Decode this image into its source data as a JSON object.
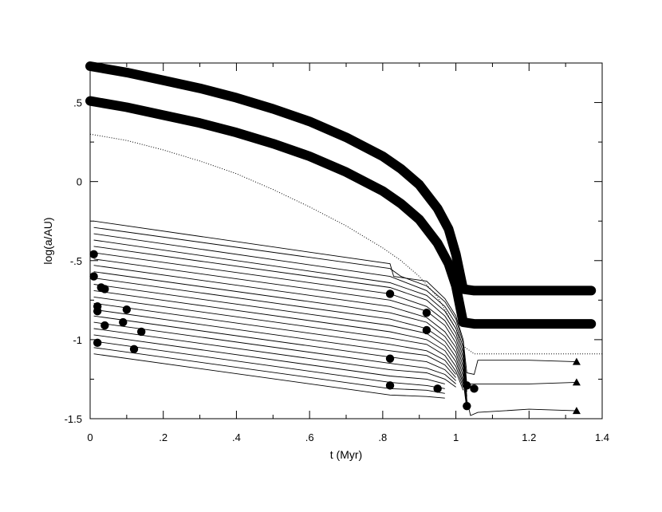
{
  "chart_data": {
    "type": "line",
    "xlabel": "t (Myr)",
    "ylabel": "log(a/AU)",
    "xlim": [
      0,
      1.4
    ],
    "ylim": [
      -1.5,
      0.75
    ],
    "x_ticks": [
      {
        "v": 0,
        "label": "0"
      },
      {
        "v": 0.2,
        "label": ".2"
      },
      {
        "v": 0.4,
        "label": ".4"
      },
      {
        "v": 0.6,
        "label": ".6"
      },
      {
        "v": 0.8,
        "label": ".8"
      },
      {
        "v": 1.0,
        "label": "1"
      },
      {
        "v": 1.2,
        "label": "1.2"
      },
      {
        "v": 1.4,
        "label": "1.4"
      }
    ],
    "y_ticks": [
      {
        "v": 0.5,
        "label": ".5"
      },
      {
        "v": 0,
        "label": "0"
      },
      {
        "v": -0.5,
        "label": "-.5"
      },
      {
        "v": -1.0,
        "label": "-1"
      },
      {
        "v": -1.5,
        "label": "-1.5"
      }
    ],
    "giant_planets": [
      {
        "points": [
          [
            0,
            0.73
          ],
          [
            0.1,
            0.69
          ],
          [
            0.2,
            0.64
          ],
          [
            0.3,
            0.59
          ],
          [
            0.4,
            0.53
          ],
          [
            0.5,
            0.46
          ],
          [
            0.6,
            0.38
          ],
          [
            0.7,
            0.28
          ],
          [
            0.8,
            0.16
          ],
          [
            0.85,
            0.08
          ],
          [
            0.9,
            -0.02
          ],
          [
            0.95,
            -0.17
          ],
          [
            0.98,
            -0.3
          ],
          [
            1.0,
            -0.46
          ],
          [
            1.02,
            -0.68
          ],
          [
            1.05,
            -0.69
          ],
          [
            1.2,
            -0.69
          ],
          [
            1.37,
            -0.69
          ]
        ]
      },
      {
        "points": [
          [
            0,
            0.51
          ],
          [
            0.1,
            0.47
          ],
          [
            0.2,
            0.42
          ],
          [
            0.3,
            0.37
          ],
          [
            0.4,
            0.31
          ],
          [
            0.5,
            0.24
          ],
          [
            0.6,
            0.16
          ],
          [
            0.7,
            0.06
          ],
          [
            0.8,
            -0.06
          ],
          [
            0.85,
            -0.14
          ],
          [
            0.9,
            -0.24
          ],
          [
            0.95,
            -0.39
          ],
          [
            0.98,
            -0.52
          ],
          [
            1.0,
            -0.66
          ],
          [
            1.02,
            -0.89
          ],
          [
            1.05,
            -0.9
          ],
          [
            1.2,
            -0.9
          ],
          [
            1.37,
            -0.9
          ]
        ]
      }
    ],
    "dotted_curve": {
      "points": [
        [
          0,
          0.3
        ],
        [
          0.1,
          0.26
        ],
        [
          0.2,
          0.2
        ],
        [
          0.3,
          0.13
        ],
        [
          0.4,
          0.05
        ],
        [
          0.5,
          -0.05
        ],
        [
          0.6,
          -0.16
        ],
        [
          0.7,
          -0.28
        ],
        [
          0.8,
          -0.42
        ],
        [
          0.85,
          -0.5
        ],
        [
          0.9,
          -0.6
        ],
        [
          0.95,
          -0.73
        ],
        [
          1.0,
          -0.93
        ],
        [
          1.02,
          -1.04
        ],
        [
          1.05,
          -1.09
        ],
        [
          1.2,
          -1.09
        ],
        [
          1.4,
          -1.09
        ]
      ]
    },
    "embryo_tracks": [
      {
        "points": [
          [
            0.01,
            -0.25
          ],
          [
            0.82,
            -0.52
          ],
          [
            0.83,
            -0.6
          ],
          [
            0.92,
            -0.63
          ],
          [
            0.97,
            -0.74
          ],
          [
            1.0,
            -0.85
          ],
          [
            1.02,
            -1.0
          ],
          [
            1.03,
            -1.21
          ],
          [
            1.05,
            -1.22
          ],
          [
            1.06,
            -1.13
          ],
          [
            1.2,
            -1.13
          ],
          [
            1.33,
            -1.14
          ]
        ]
      },
      {
        "points": [
          [
            0.01,
            -0.29
          ],
          [
            0.82,
            -0.55
          ],
          [
            0.85,
            -0.6
          ],
          [
            0.92,
            -0.66
          ],
          [
            0.97,
            -0.76
          ],
          [
            1.0,
            -0.87
          ],
          [
            1.02,
            -1.02
          ],
          [
            1.03,
            -1.28
          ],
          [
            1.2,
            -1.28
          ],
          [
            1.33,
            -1.27
          ]
        ]
      },
      {
        "points": [
          [
            0.01,
            -0.33
          ],
          [
            0.82,
            -0.6
          ],
          [
            0.92,
            -0.69
          ],
          [
            0.97,
            -0.79
          ],
          [
            1.0,
            -0.9
          ],
          [
            1.02,
            -1.05
          ],
          [
            1.03,
            -1.38
          ],
          [
            1.04,
            -1.48
          ],
          [
            1.06,
            -1.46
          ],
          [
            1.2,
            -1.44
          ],
          [
            1.33,
            -1.45
          ]
        ]
      },
      {
        "points": [
          [
            0.01,
            -0.37
          ],
          [
            0.82,
            -0.64
          ],
          [
            0.92,
            -0.72
          ],
          [
            0.97,
            -0.82
          ],
          [
            1.0,
            -0.93
          ],
          [
            1.02,
            -1.08
          ],
          [
            1.03,
            -1.3
          ]
        ]
      },
      {
        "points": [
          [
            0.01,
            -0.41
          ],
          [
            0.82,
            -0.67
          ],
          [
            0.92,
            -0.75
          ],
          [
            0.97,
            -0.85
          ],
          [
            1.0,
            -0.96
          ],
          [
            1.02,
            -1.11
          ],
          [
            1.03,
            -1.33
          ]
        ]
      },
      {
        "points": [
          [
            0.01,
            -0.45
          ],
          [
            0.82,
            -0.71
          ],
          [
            0.92,
            -0.79
          ],
          [
            0.97,
            -0.88
          ],
          [
            1.0,
            -0.99
          ],
          [
            1.02,
            -1.14
          ],
          [
            1.03,
            -1.36
          ]
        ]
      },
      {
        "points": [
          [
            0.01,
            -0.49
          ],
          [
            0.82,
            -0.75
          ],
          [
            0.92,
            -0.82
          ],
          [
            0.97,
            -0.91
          ],
          [
            1.0,
            -1.02
          ],
          [
            1.02,
            -1.17
          ],
          [
            1.03,
            -1.39
          ]
        ]
      },
      {
        "points": [
          [
            0.01,
            -0.53
          ],
          [
            0.82,
            -0.79
          ],
          [
            0.92,
            -0.86
          ],
          [
            0.97,
            -0.95
          ],
          [
            1.0,
            -1.05
          ],
          [
            1.02,
            -1.2
          ],
          [
            1.03,
            -1.42
          ]
        ]
      },
      {
        "points": [
          [
            0.01,
            -0.57
          ],
          [
            0.82,
            -0.83
          ],
          [
            0.92,
            -0.89
          ],
          [
            0.97,
            -0.98
          ],
          [
            1.0,
            -1.08
          ],
          [
            1.02,
            -1.23
          ],
          [
            1.03,
            -1.44
          ]
        ]
      },
      {
        "points": [
          [
            0.01,
            -0.61
          ],
          [
            0.82,
            -0.87
          ],
          [
            0.92,
            -0.93
          ],
          [
            0.97,
            -1.01
          ],
          [
            1.0,
            -1.11
          ],
          [
            1.02,
            -1.26
          ],
          [
            1.03,
            -1.44
          ]
        ]
      },
      {
        "points": [
          [
            0.01,
            -0.65
          ],
          [
            0.82,
            -0.91
          ],
          [
            0.92,
            -0.96
          ],
          [
            0.97,
            -1.04
          ],
          [
            1.0,
            -1.14
          ],
          [
            1.02,
            -1.28
          ]
        ]
      },
      {
        "points": [
          [
            0.01,
            -0.69
          ],
          [
            0.82,
            -0.95
          ],
          [
            0.92,
            -1.0
          ],
          [
            0.97,
            -1.07
          ],
          [
            1.0,
            -1.17
          ],
          [
            1.02,
            -1.3
          ]
        ]
      },
      {
        "points": [
          [
            0.01,
            -0.73
          ],
          [
            0.82,
            -0.99
          ],
          [
            0.92,
            -1.03
          ],
          [
            0.97,
            -1.1
          ],
          [
            1.0,
            -1.2
          ],
          [
            1.02,
            -1.32
          ]
        ]
      },
      {
        "points": [
          [
            0.01,
            -0.77
          ],
          [
            0.82,
            -1.03
          ],
          [
            0.92,
            -1.07
          ],
          [
            0.97,
            -1.13
          ],
          [
            1.0,
            -1.22
          ]
        ]
      },
      {
        "points": [
          [
            0.01,
            -0.81
          ],
          [
            0.82,
            -1.07
          ],
          [
            0.92,
            -1.1
          ],
          [
            0.97,
            -1.16
          ],
          [
            1.0,
            -1.24
          ]
        ]
      },
      {
        "points": [
          [
            0.01,
            -0.85
          ],
          [
            0.82,
            -1.11
          ],
          [
            0.92,
            -1.14
          ],
          [
            0.97,
            -1.19
          ],
          [
            1.0,
            -1.26
          ]
        ]
      },
      {
        "points": [
          [
            0.01,
            -0.89
          ],
          [
            0.82,
            -1.15
          ],
          [
            0.92,
            -1.18
          ],
          [
            0.97,
            -1.22
          ],
          [
            1.0,
            -1.28
          ]
        ]
      },
      {
        "points": [
          [
            0.01,
            -0.93
          ],
          [
            0.82,
            -1.19
          ],
          [
            0.92,
            -1.21
          ],
          [
            0.97,
            -1.25
          ],
          [
            1.0,
            -1.3
          ]
        ]
      },
      {
        "points": [
          [
            0.01,
            -0.97
          ],
          [
            0.82,
            -1.23
          ],
          [
            0.92,
            -1.25
          ],
          [
            0.97,
            -1.28
          ]
        ]
      },
      {
        "points": [
          [
            0.01,
            -1.01
          ],
          [
            0.82,
            -1.27
          ],
          [
            0.92,
            -1.29
          ],
          [
            0.97,
            -1.31
          ]
        ]
      },
      {
        "points": [
          [
            0.01,
            -1.05
          ],
          [
            0.82,
            -1.31
          ],
          [
            0.92,
            -1.32
          ],
          [
            0.97,
            -1.34
          ]
        ]
      },
      {
        "points": [
          [
            0.01,
            -1.09
          ],
          [
            0.82,
            -1.35
          ],
          [
            0.92,
            -1.36
          ],
          [
            0.97,
            -1.37
          ]
        ]
      }
    ],
    "collision_markers": [
      {
        "x": 0.01,
        "y": -0.46
      },
      {
        "x": 0.01,
        "y": -0.6
      },
      {
        "x": 0.03,
        "y": -0.67
      },
      {
        "x": 0.04,
        "y": -0.68
      },
      {
        "x": 0.02,
        "y": -0.79
      },
      {
        "x": 0.02,
        "y": -0.82
      },
      {
        "x": 0.1,
        "y": -0.81
      },
      {
        "x": 0.09,
        "y": -0.89
      },
      {
        "x": 0.04,
        "y": -0.91
      },
      {
        "x": 0.14,
        "y": -0.95
      },
      {
        "x": 0.02,
        "y": -1.02
      },
      {
        "x": 0.12,
        "y": -1.06
      },
      {
        "x": 0.82,
        "y": -0.71
      },
      {
        "x": 0.92,
        "y": -0.83
      },
      {
        "x": 0.92,
        "y": -0.94
      },
      {
        "x": 0.82,
        "y": -1.12
      },
      {
        "x": 0.82,
        "y": -1.29
      },
      {
        "x": 0.95,
        "y": -1.31
      },
      {
        "x": 1.03,
        "y": -1.29
      },
      {
        "x": 1.05,
        "y": -1.31
      },
      {
        "x": 1.03,
        "y": -1.42
      }
    ],
    "final_markers": [
      {
        "x": 1.33,
        "y": -1.14
      },
      {
        "x": 1.33,
        "y": -1.27
      },
      {
        "x": 1.33,
        "y": -1.45
      }
    ]
  }
}
